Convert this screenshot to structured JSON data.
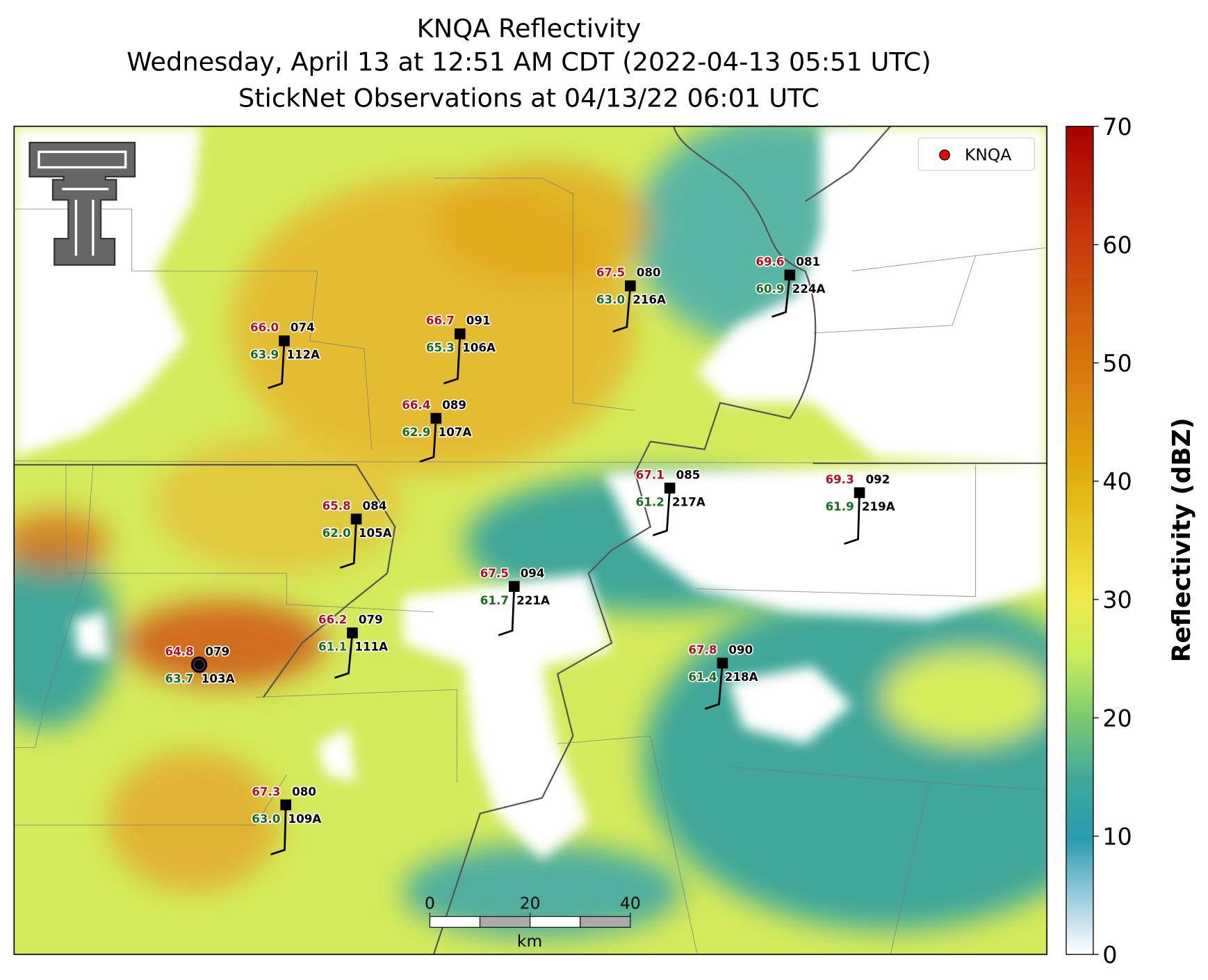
{
  "title": [
    "KNQA Reflectivity",
    "Wednesday, April 13 at 12:51 AM CDT (2022-04-13 05:51 UTC)",
    "StickNet Observations at 04/13/22 06:01 UTC"
  ],
  "legend": {
    "label": "KNQA"
  },
  "stations": [
    {
      "id": "112A",
      "temperature": "66.0",
      "dewpoint": "63.9",
      "pressure": "074"
    },
    {
      "id": "106A",
      "temperature": "66.7",
      "dewpoint": "65.3",
      "pressure": "091"
    },
    {
      "id": "107A",
      "temperature": "66.4",
      "dewpoint": "62.9",
      "pressure": "089"
    },
    {
      "id": "216A",
      "temperature": "67.5",
      "dewpoint": "63.0",
      "pressure": "080"
    },
    {
      "id": "224A",
      "temperature": "69.6",
      "dewpoint": "60.9",
      "pressure": "081"
    },
    {
      "id": "105A",
      "temperature": "65.8",
      "dewpoint": "62.0",
      "pressure": "084"
    },
    {
      "id": "217A",
      "temperature": "67.1",
      "dewpoint": "61.2",
      "pressure": "085"
    },
    {
      "id": "219A",
      "temperature": "69.3",
      "dewpoint": "61.9",
      "pressure": "092"
    },
    {
      "id": "221A",
      "temperature": "67.5",
      "dewpoint": "61.7",
      "pressure": "094"
    },
    {
      "id": "111A",
      "temperature": "66.2",
      "dewpoint": "61.1",
      "pressure": "079"
    },
    {
      "id": "103A",
      "temperature": "64.8",
      "dewpoint": "63.7",
      "pressure": "079"
    },
    {
      "id": "218A",
      "temperature": "67.8",
      "dewpoint": "61.4",
      "pressure": "090"
    },
    {
      "id": "109A",
      "temperature": "67.3",
      "dewpoint": "63.0",
      "pressure": "080"
    }
  ],
  "colorbar": {
    "label": "Reflectivity (dBZ)",
    "lim": [
      0,
      70
    ],
    "ticks": [
      0,
      10,
      20,
      30,
      40,
      50,
      60,
      70
    ]
  },
  "scale_bar": {
    "ticks": [
      0,
      20,
      40
    ],
    "unit": "km"
  }
}
